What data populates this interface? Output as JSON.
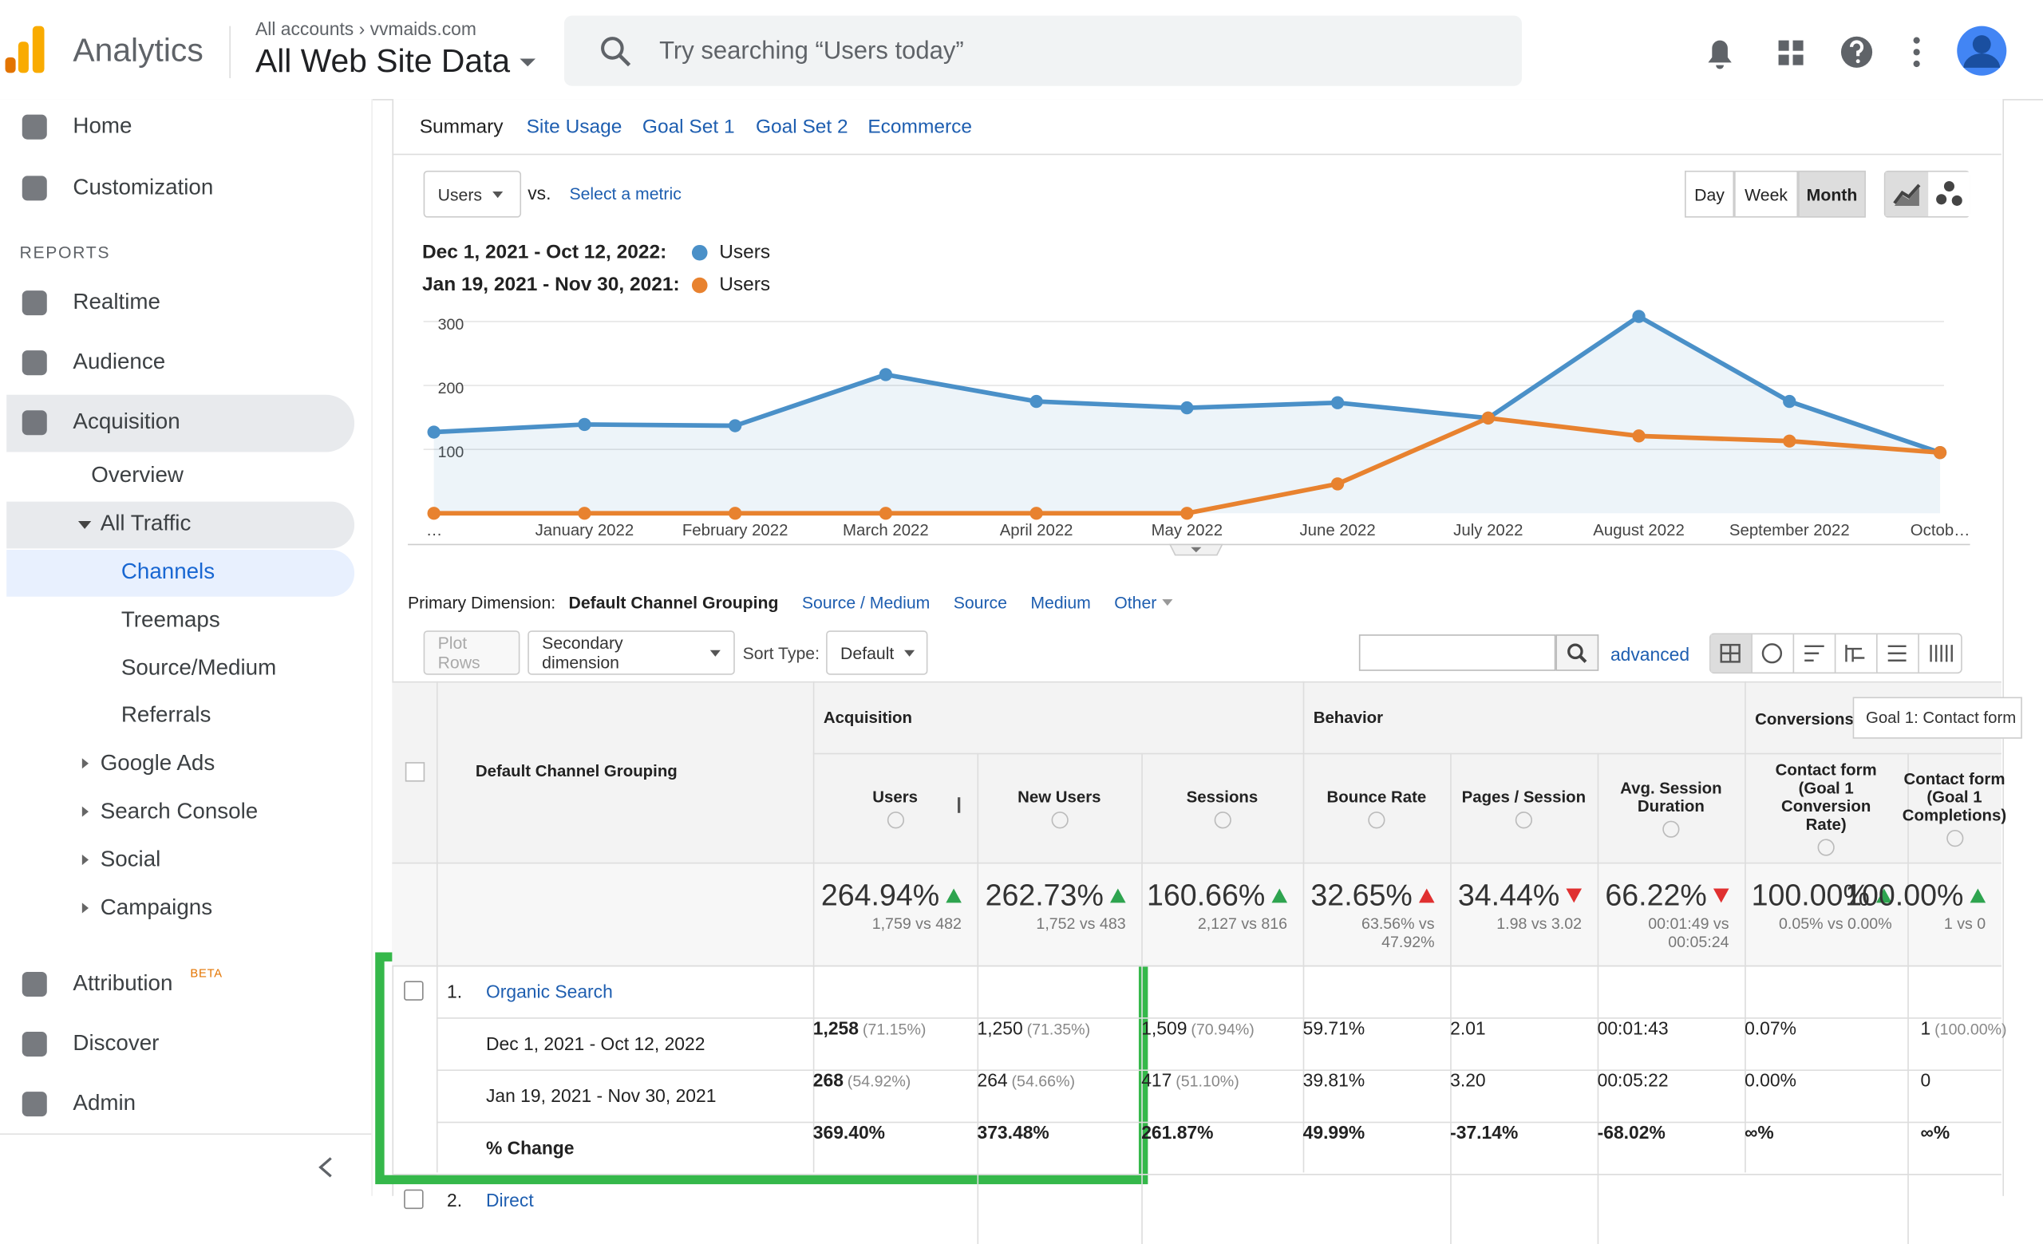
{
  "header": {
    "product": "Analytics",
    "account": "All accounts",
    "site": "vvmaids.com",
    "view": "All Web Site Data",
    "search_placeholder": "Try searching “Users today”"
  },
  "sidebar": {
    "items": [
      "Home",
      "Customization"
    ],
    "section": "REPORTS",
    "reports": [
      "Realtime",
      "Audience",
      "Acquisition"
    ],
    "acquisition": [
      "Overview",
      "All Traffic"
    ],
    "all_traffic": [
      "Channels",
      "Treemaps",
      "Source/Medium",
      "Referrals"
    ],
    "acquisition_more": [
      "Google Ads",
      "Search Console",
      "Social",
      "Campaigns"
    ],
    "attribution": "Attribution",
    "beta": "BETA",
    "bottom": [
      "Discover",
      "Admin"
    ]
  },
  "tabs": [
    "Summary",
    "Site Usage",
    "Goal Set 1",
    "Goal Set 2",
    "Ecommerce"
  ],
  "controls": {
    "metric": "Users",
    "vs": "vs.",
    "select_metric": "Select a metric",
    "periods": [
      "Day",
      "Week",
      "Month"
    ]
  },
  "chart_data": {
    "type": "line",
    "categories": [
      "…",
      "January 2022",
      "February 2022",
      "March 2022",
      "April 2022",
      "May 2022",
      "June 2022",
      "July 2022",
      "August 2022",
      "September 2022",
      "Octob…"
    ],
    "series": [
      {
        "name": "Users",
        "period": "Dec 1, 2021 - Oct 12, 2022:",
        "color": "#4a90c8",
        "area": true,
        "values": [
          127,
          139,
          137,
          217,
          175,
          165,
          173,
          149,
          308,
          175,
          95
        ]
      },
      {
        "name": "Users",
        "period": "Jan 19, 2021 - Nov 30, 2021:",
        "color": "#e8822f",
        "area": false,
        "values": [
          0,
          0,
          0,
          0,
          0,
          0,
          46,
          149,
          121,
          113,
          95
        ]
      }
    ],
    "ylim": [
      0,
      320
    ],
    "yticks": [
      100,
      200,
      300
    ],
    "grid": true
  },
  "dimension": {
    "label": "Primary Dimension:",
    "options": [
      "Default Channel Grouping",
      "Source / Medium",
      "Source",
      "Medium",
      "Other"
    ]
  },
  "table_controls": {
    "plot_rows": "Plot Rows",
    "secondary": "Secondary dimension",
    "sort_label": "Sort Type:",
    "sort": "Default",
    "advanced": "advanced"
  },
  "table": {
    "groups": [
      "Acquisition",
      "Behavior",
      "Conversions"
    ],
    "goal_select": "Goal 1: Contact form",
    "dimension_header": "Default Channel Grouping",
    "columns": [
      "Users",
      "New Users",
      "Sessions",
      "Bounce Rate",
      "Pages / Session",
      "Avg. Session Duration",
      "Contact form (Goal 1 Conversion Rate)",
      "Contact form (Goal 1 Completions)"
    ],
    "summary": [
      {
        "pct": "264.94%",
        "sub": "1,759 vs 482"
      },
      {
        "pct": "262.73%",
        "sub": "1,752 vs 483"
      },
      {
        "pct": "160.66%",
        "sub": "2,127 vs 816"
      },
      {
        "pct": "32.65%",
        "sub": "63.56% vs 47.92%"
      },
      {
        "pct": "34.44%",
        "sub": "1.98 vs 3.02"
      },
      {
        "pct": "66.22%",
        "sub": "00:01:49 vs 00:05:24"
      },
      {
        "pct": "100.00%",
        "sub": "0.05% vs 0.00%"
      },
      {
        "pct": "100.00%",
        "sub": "1 vs 0"
      }
    ],
    "rows": [
      {
        "index": "1.",
        "name": "Organic Search",
        "periods": [
          {
            "label": "Dec 1, 2021 - Oct 12, 2022",
            "cells": [
              [
                "1,258",
                "(71.15%)"
              ],
              [
                "1,250",
                "(71.35%)"
              ],
              [
                "1,509",
                "(70.94%)"
              ],
              [
                "59.71%"
              ],
              [
                "2.01"
              ],
              [
                "00:01:43"
              ],
              [
                "0.07%"
              ],
              [
                "1",
                "(100.00%)"
              ]
            ]
          },
          {
            "label": "Jan 19, 2021 - Nov 30, 2021",
            "cells": [
              [
                "268",
                "(54.92%)"
              ],
              [
                "264",
                "(54.66%)"
              ],
              [
                "417",
                "(51.10%)"
              ],
              [
                "39.81%"
              ],
              [
                "3.20"
              ],
              [
                "00:05:22"
              ],
              [
                "0.00%"
              ],
              [
                "0"
              ]
            ]
          },
          {
            "label": "% Change",
            "cells": [
              [
                "369.40%"
              ],
              [
                "373.48%"
              ],
              [
                "261.87%"
              ],
              [
                "49.99%"
              ],
              [
                "-37.14%"
              ],
              [
                "-68.02%"
              ],
              [
                "∞%"
              ],
              [
                "∞%"
              ]
            ]
          }
        ]
      },
      {
        "index": "2.",
        "name": "Direct",
        "periods": []
      }
    ]
  }
}
